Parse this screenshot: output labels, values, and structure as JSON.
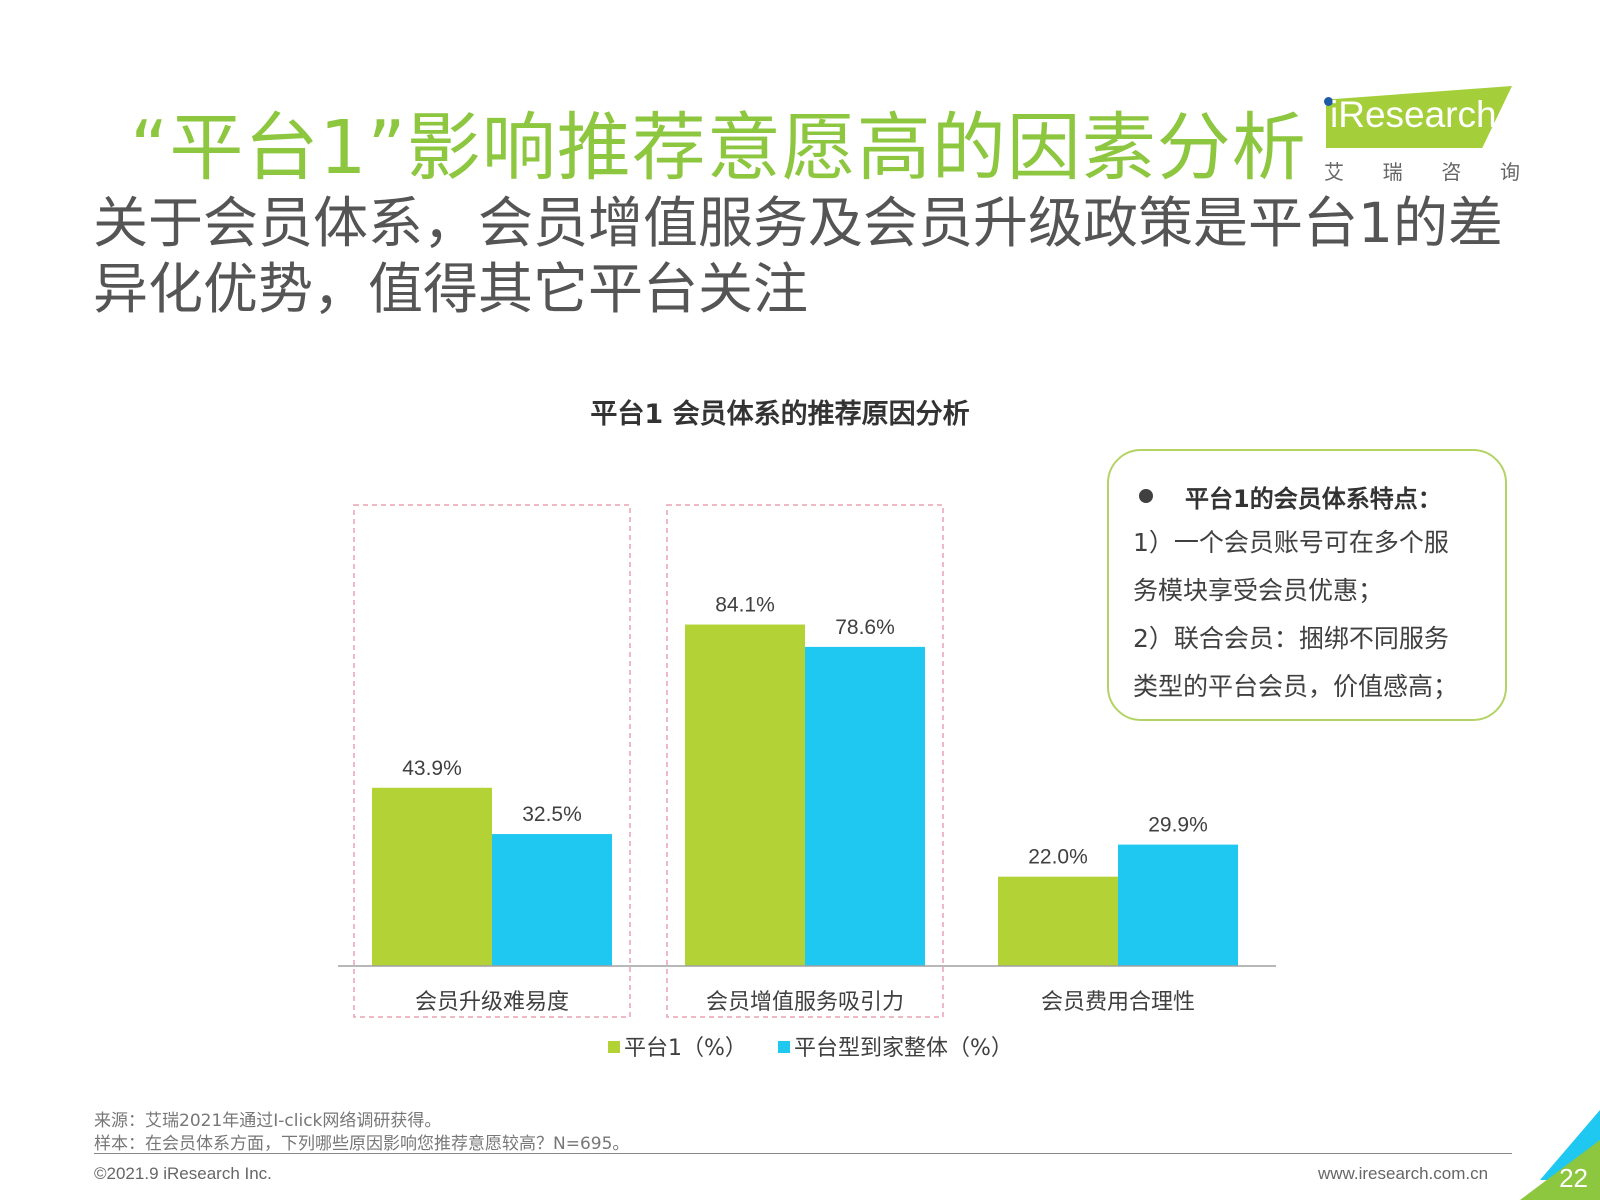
{
  "header": {
    "title": "“平台1”影响推荐意愿高的因素分析",
    "subtitle": "关于会员体系，会员增值服务及会员升级政策是平台1的差异化优势，值得其它平台关注"
  },
  "logo": {
    "name": "iResearch",
    "subtitle_chars": [
      "艾",
      "瑞",
      "咨",
      "询"
    ]
  },
  "chart_data": {
    "type": "bar",
    "title": "平台1 会员体系的推荐原因分析",
    "categories": [
      "会员升级难易度",
      "会员增值服务吸引力",
      "会员费用合理性"
    ],
    "series": [
      {
        "name": "平台1（%）",
        "values": [
          43.9,
          84.1,
          22.0
        ],
        "labels": [
          "43.9%",
          "84.1%",
          "22.0%"
        ],
        "color": "#b2d235"
      },
      {
        "name": "平台型到家整体（%）",
        "values": [
          32.5,
          78.6,
          29.9
        ],
        "labels": [
          "32.5%",
          "78.6%",
          "29.9%"
        ],
        "color": "#1ec8f0"
      }
    ],
    "highlighted_categories": [
      0,
      1
    ],
    "highlight_color": "#e8a0b0",
    "ylim": [
      0,
      100
    ],
    "grid": false,
    "legend_position": "bottom"
  },
  "callout": {
    "heading": "平台1的会员体系特点：",
    "lines": [
      "1）一个会员账号可在多个服",
      "务模块享受会员优惠；",
      "2）联合会员：捆绑不同服务",
      "类型的平台会员，价值感高；"
    ]
  },
  "footer": {
    "source": "来源：艾瑞2021年通过I-click网络调研获得。",
    "sample": "样本：在会员体系方面，下列哪些原因影响您推荐意愿较高？N=695。",
    "copyright": "©2021.9 iResearch Inc.",
    "website": "www.iresearch.com.cn",
    "page_number": "22"
  },
  "colors": {
    "title_green": "#8dc63f",
    "corner_blue": "#1ec8f0",
    "corner_green": "#8dc63f"
  }
}
